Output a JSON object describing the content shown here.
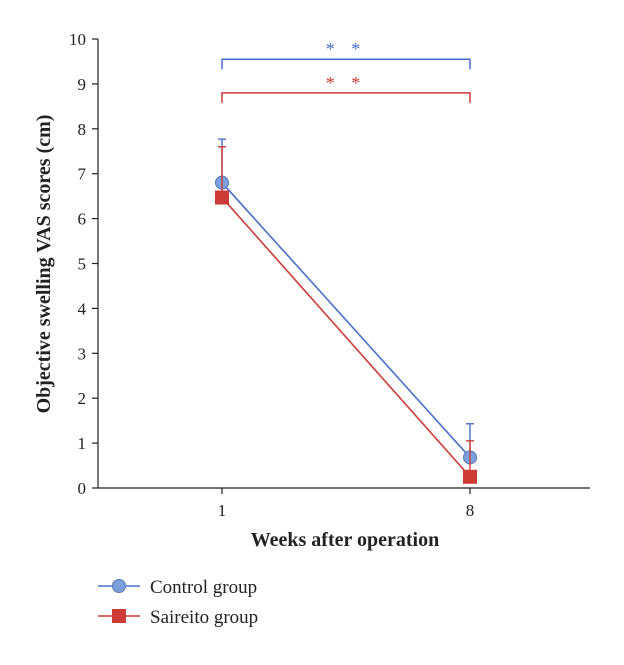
{
  "chart_data": {
    "type": "line",
    "title": "",
    "xlabel": "Weeks after operation",
    "ylabel": "Objective swelling VAS scores (cm)",
    "categories": [
      "1",
      "8"
    ],
    "ylim": [
      0,
      10
    ],
    "yticks": [
      "0",
      "1",
      "2",
      "3",
      "4",
      "5",
      "6",
      "7",
      "8",
      "9",
      "10"
    ],
    "grid": false,
    "legend_position": "bottom-left",
    "series": [
      {
        "name": "Control group",
        "values": [
          6.8,
          0.68
        ],
        "error_upper": [
          0.97,
          0.75
        ],
        "marker": "circle",
        "color": "#4a6fc9",
        "marker_color": "#7d9fdc"
      },
      {
        "name": "Saireito group",
        "values": [
          6.47,
          0.25
        ],
        "error_upper": [
          1.13,
          0.8
        ],
        "marker": "square",
        "color": "#cc3b36",
        "marker_color": "#cc3b36"
      }
    ],
    "annotations": [
      {
        "text": "* *",
        "color": "#4a6fc9",
        "from": "1",
        "to": "8",
        "y": 9.55
      },
      {
        "text": "* *",
        "color": "#cc3b36",
        "from": "1",
        "to": "8",
        "y": 8.8
      }
    ]
  }
}
